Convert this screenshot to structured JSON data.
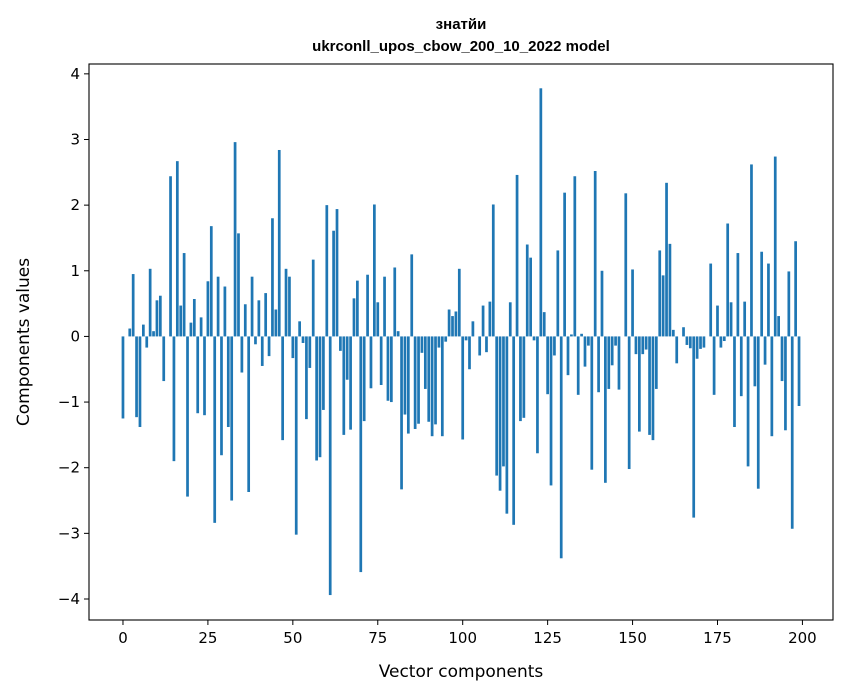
{
  "chart_data": {
    "type": "bar",
    "title": "знатйи",
    "subtitle": "ukrconll_upos_cbow_200_10_2022 model",
    "xlabel": "Vector components",
    "ylabel": "Components values",
    "xlim": [
      -10,
      209
    ],
    "ylim": [
      -4.32,
      4.15
    ],
    "xticks": [
      0,
      25,
      50,
      75,
      100,
      125,
      150,
      175,
      200
    ],
    "yticks": [
      -4,
      -3,
      -2,
      -1,
      0,
      1,
      2,
      3,
      4
    ],
    "xtick_labels": [
      "0",
      "25",
      "50",
      "75",
      "100",
      "125",
      "150",
      "175",
      "200"
    ],
    "ytick_labels": [
      "−4",
      "−3",
      "−2",
      "−1",
      "0",
      "1",
      "2",
      "3",
      "4"
    ],
    "bar_color": "#1f77b4",
    "grid": false,
    "values": [
      -1.25,
      0.0,
      0.12,
      0.95,
      -1.23,
      -1.38,
      0.18,
      -0.17,
      1.03,
      0.08,
      0.55,
      0.62,
      -0.68,
      0.0,
      2.44,
      -1.9,
      2.67,
      0.47,
      1.27,
      -2.44,
      0.21,
      0.57,
      -1.17,
      0.29,
      -1.2,
      0.84,
      1.68,
      -2.84,
      0.91,
      -1.81,
      0.76,
      -1.38,
      -2.5,
      2.96,
      1.57,
      -0.55,
      0.49,
      -2.37,
      0.91,
      -0.12,
      0.55,
      -0.45,
      0.66,
      -0.3,
      1.8,
      0.41,
      2.84,
      -1.58,
      1.03,
      0.91,
      -0.33,
      -3.02,
      0.23,
      -0.1,
      -1.26,
      -0.48,
      1.17,
      -1.89,
      -1.84,
      -1.12,
      2.0,
      -3.94,
      1.61,
      1.94,
      -0.22,
      -1.5,
      -0.66,
      -1.42,
      0.58,
      0.85,
      -3.59,
      -1.29,
      0.94,
      -0.79,
      2.01,
      0.52,
      -0.74,
      0.91,
      -0.98,
      -1.0,
      1.05,
      0.08,
      -2.33,
      -1.19,
      -1.48,
      1.25,
      -1.41,
      -1.33,
      -0.25,
      -0.8,
      -1.3,
      -1.52,
      -1.34,
      -0.17,
      -1.52,
      -0.08,
      0.41,
      0.31,
      0.38,
      1.03,
      -1.57,
      -0.06,
      -0.5,
      0.23,
      0.0,
      -0.29,
      0.47,
      -0.24,
      0.53,
      2.01,
      -2.12,
      -2.35,
      -1.98,
      -2.7,
      0.52,
      -2.87,
      2.46,
      -1.29,
      -1.24,
      1.4,
      1.2,
      -0.06,
      -1.78,
      3.78,
      0.37,
      -0.88,
      -2.27,
      -0.29,
      1.31,
      -3.38,
      2.19,
      -0.59,
      0.03,
      2.44,
      -0.89,
      0.04,
      -0.46,
      -0.14,
      -2.03,
      2.52,
      -0.85,
      1.0,
      -2.23,
      -0.8,
      -0.44,
      -0.14,
      -0.81,
      0.0,
      2.18,
      -2.02,
      1.02,
      -0.27,
      -1.45,
      -0.27,
      -0.2,
      -1.5,
      -1.58,
      -0.8,
      1.31,
      0.93,
      2.34,
      1.41,
      0.1,
      -0.41,
      0.0,
      0.14,
      -0.13,
      -0.18,
      -2.76,
      -0.34,
      -0.19,
      -0.17,
      0.0,
      1.11,
      -0.89,
      0.47,
      -0.17,
      -0.07,
      1.72,
      0.52,
      -1.38,
      1.27,
      -0.91,
      0.53,
      -1.98,
      2.62,
      -0.76,
      -2.32,
      1.29,
      -0.43,
      1.11,
      -1.52,
      2.74,
      0.31,
      -0.68,
      -1.43,
      0.99,
      -2.93,
      1.45,
      -1.06
    ]
  }
}
